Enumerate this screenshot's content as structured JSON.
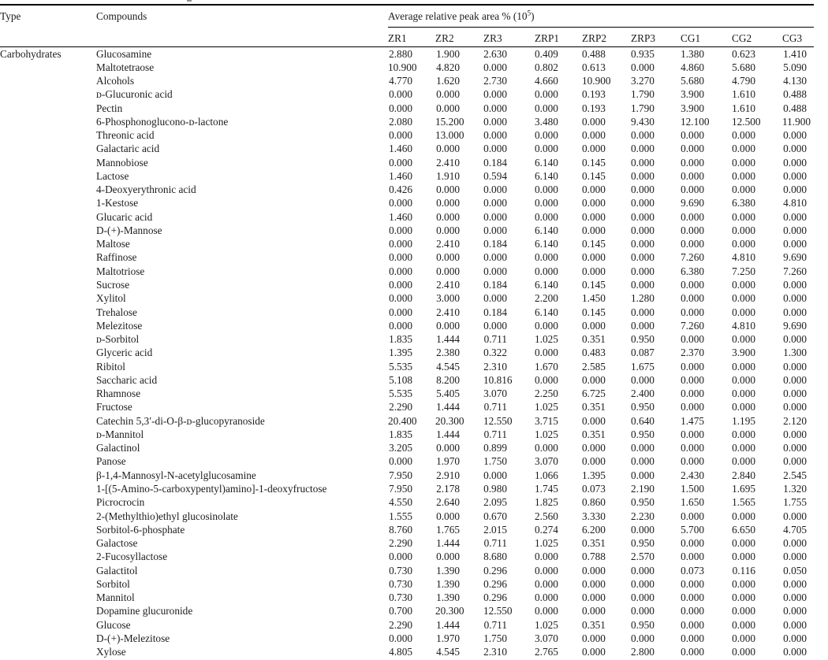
{
  "table": {
    "headers": {
      "type": "Type",
      "compounds": "Compounds",
      "spanner_prefix": "Average relative peak area % (10",
      "spanner_sup": "5",
      "spanner_suffix": ")"
    },
    "sample_headers": [
      "ZR1",
      "ZR2",
      "ZR3",
      "ZRP1",
      "ZRP2",
      "ZRP3",
      "CG1",
      "CG2",
      "CG3"
    ],
    "type_label": "Carbohydrates",
    "rows": [
      {
        "compound": "Glucosamine",
        "values": [
          "2.880",
          "1.900",
          "2.630",
          "0.409",
          "0.488",
          "0.935",
          "1.380",
          "0.623",
          "1.410"
        ]
      },
      {
        "compound": "Maltotetraose",
        "values": [
          "10.900",
          "4.820",
          "0.000",
          "0.802",
          "0.613",
          "0.000",
          "4.860",
          "5.680",
          "5.090"
        ]
      },
      {
        "compound": "Alcohols",
        "values": [
          "4.770",
          "1.620",
          "2.730",
          "4.660",
          "10.900",
          "3.270",
          "5.680",
          "4.790",
          "4.130"
        ]
      },
      {
        "compound": "ᴅ-Glucuronic acid",
        "values": [
          "0.000",
          "0.000",
          "0.000",
          "0.000",
          "0.193",
          "1.790",
          "3.900",
          "1.610",
          "0.488"
        ]
      },
      {
        "compound": "Pectin",
        "values": [
          "0.000",
          "0.000",
          "0.000",
          "0.000",
          "0.193",
          "1.790",
          "3.900",
          "1.610",
          "0.488"
        ]
      },
      {
        "compound": "6-Phosphonoglucono-ᴅ-lactone",
        "values": [
          "2.080",
          "15.200",
          "0.000",
          "3.480",
          "0.000",
          "9.430",
          "12.100",
          "12.500",
          "11.900"
        ]
      },
      {
        "compound": "Threonic acid",
        "values": [
          "0.000",
          "13.000",
          "0.000",
          "0.000",
          "0.000",
          "0.000",
          "0.000",
          "0.000",
          "0.000"
        ]
      },
      {
        "compound": "Galactaric acid",
        "values": [
          "1.460",
          "0.000",
          "0.000",
          "0.000",
          "0.000",
          "0.000",
          "0.000",
          "0.000",
          "0.000"
        ]
      },
      {
        "compound": "Mannobiose",
        "values": [
          "0.000",
          "2.410",
          "0.184",
          "6.140",
          "0.145",
          "0.000",
          "0.000",
          "0.000",
          "0.000"
        ]
      },
      {
        "compound": "Lactose",
        "values": [
          "1.460",
          "1.910",
          "0.594",
          "6.140",
          "0.145",
          "0.000",
          "0.000",
          "0.000",
          "0.000"
        ]
      },
      {
        "compound": "4-Deoxyerythronic acid",
        "values": [
          "0.426",
          "0.000",
          "0.000",
          "0.000",
          "0.000",
          "0.000",
          "0.000",
          "0.000",
          "0.000"
        ]
      },
      {
        "compound": "1-Kestose",
        "values": [
          "0.000",
          "0.000",
          "0.000",
          "0.000",
          "0.000",
          "0.000",
          "9.690",
          "6.380",
          "4.810"
        ]
      },
      {
        "compound": "Glucaric acid",
        "values": [
          "1.460",
          "0.000",
          "0.000",
          "0.000",
          "0.000",
          "0.000",
          "0.000",
          "0.000",
          "0.000"
        ]
      },
      {
        "compound": "D-(+)-Mannose",
        "values": [
          "0.000",
          "0.000",
          "0.000",
          "6.140",
          "0.000",
          "0.000",
          "0.000",
          "0.000",
          "0.000"
        ]
      },
      {
        "compound": "Maltose",
        "values": [
          "0.000",
          "2.410",
          "0.184",
          "6.140",
          "0.145",
          "0.000",
          "0.000",
          "0.000",
          "0.000"
        ]
      },
      {
        "compound": "Raffinose",
        "values": [
          "0.000",
          "0.000",
          "0.000",
          "0.000",
          "0.000",
          "0.000",
          "7.260",
          "4.810",
          "9.690"
        ]
      },
      {
        "compound": "Maltotriose",
        "values": [
          "0.000",
          "0.000",
          "0.000",
          "0.000",
          "0.000",
          "0.000",
          "6.380",
          "7.250",
          "7.260"
        ]
      },
      {
        "compound": "Sucrose",
        "values": [
          "0.000",
          "2.410",
          "0.184",
          "6.140",
          "0.145",
          "0.000",
          "0.000",
          "0.000",
          "0.000"
        ]
      },
      {
        "compound": "Xylitol",
        "values": [
          "0.000",
          "3.000",
          "0.000",
          "2.200",
          "1.450",
          "1.280",
          "0.000",
          "0.000",
          "0.000"
        ]
      },
      {
        "compound": "Trehalose",
        "values": [
          "0.000",
          "2.410",
          "0.184",
          "6.140",
          "0.145",
          "0.000",
          "0.000",
          "0.000",
          "0.000"
        ]
      },
      {
        "compound": "Melezitose",
        "values": [
          "0.000",
          "0.000",
          "0.000",
          "0.000",
          "0.000",
          "0.000",
          "7.260",
          "4.810",
          "9.690"
        ]
      },
      {
        "compound": "ᴅ-Sorbitol",
        "values": [
          "1.835",
          "1.444",
          "0.711",
          "1.025",
          "0.351",
          "0.950",
          "0.000",
          "0.000",
          "0.000"
        ]
      },
      {
        "compound": "Glyceric acid",
        "values": [
          "1.395",
          "2.380",
          "0.322",
          "0.000",
          "0.483",
          "0.087",
          "2.370",
          "3.900",
          "1.300"
        ]
      },
      {
        "compound": "Ribitol",
        "values": [
          "5.535",
          "4.545",
          "2.310",
          "1.670",
          "2.585",
          "1.675",
          "0.000",
          "0.000",
          "0.000"
        ]
      },
      {
        "compound": "Saccharic acid",
        "values": [
          "5.108",
          "8.200",
          "10.816",
          "0.000",
          "0.000",
          "0.000",
          "0.000",
          "0.000",
          "0.000"
        ]
      },
      {
        "compound": "Rhamnose",
        "values": [
          "5.535",
          "5.405",
          "3.070",
          "2.250",
          "6.725",
          "2.400",
          "0.000",
          "0.000",
          "0.000"
        ]
      },
      {
        "compound": "Fructose",
        "values": [
          "2.290",
          "1.444",
          "0.711",
          "1.025",
          "0.351",
          "0.950",
          "0.000",
          "0.000",
          "0.000"
        ]
      },
      {
        "compound": "Catechin 5,3′-di-O-β-ᴅ-glucopyranoside",
        "values": [
          "20.400",
          "20.300",
          "12.550",
          "3.715",
          "0.000",
          "0.640",
          "1.475",
          "1.195",
          "2.120"
        ]
      },
      {
        "compound": "ᴅ-Mannitol",
        "values": [
          "1.835",
          "1.444",
          "0.711",
          "1.025",
          "0.351",
          "0.950",
          "0.000",
          "0.000",
          "0.000"
        ]
      },
      {
        "compound": "Galactinol",
        "values": [
          "3.205",
          "0.000",
          "0.899",
          "0.000",
          "0.000",
          "0.000",
          "0.000",
          "0.000",
          "0.000"
        ]
      },
      {
        "compound": "Panose",
        "values": [
          "0.000",
          "1.970",
          "1.750",
          "3.070",
          "0.000",
          "0.000",
          "0.000",
          "0.000",
          "0.000"
        ]
      },
      {
        "compound": "β-1,4-Mannosyl-N-acetylglucosamine",
        "values": [
          "7.950",
          "2.910",
          "0.000",
          "1.066",
          "1.395",
          "0.000",
          "2.430",
          "2.840",
          "2.545"
        ]
      },
      {
        "compound": "1-[(5-Amino-5-carboxypentyl)amino]-1-deoxyfructose",
        "values": [
          "7.950",
          "2.178",
          "0.980",
          "1.745",
          "0.073",
          "2.190",
          "1.500",
          "1.695",
          "1.320"
        ]
      },
      {
        "compound": "Picrocrocin",
        "values": [
          "4.550",
          "2.640",
          "2.095",
          "1.825",
          "0.860",
          "0.950",
          "1.650",
          "1.565",
          "1.755"
        ]
      },
      {
        "compound": "2-(Methylthio)ethyl glucosinolate",
        "values": [
          "1.555",
          "0.000",
          "0.670",
          "2.560",
          "3.330",
          "2.230",
          "0.000",
          "0.000",
          "0.000"
        ]
      },
      {
        "compound": "Sorbitol-6-phosphate",
        "values": [
          "8.760",
          "1.765",
          "2.015",
          "0.274",
          "6.200",
          "0.000",
          "5.700",
          "6.650",
          "4.705"
        ]
      },
      {
        "compound": "Galactose",
        "values": [
          "2.290",
          "1.444",
          "0.711",
          "1.025",
          "0.351",
          "0.950",
          "0.000",
          "0.000",
          "0.000"
        ]
      },
      {
        "compound": "2-Fucosyllactose",
        "values": [
          "0.000",
          "0.000",
          "8.680",
          "0.000",
          "0.788",
          "2.570",
          "0.000",
          "0.000",
          "0.000"
        ]
      },
      {
        "compound": "Galactitol",
        "values": [
          "0.730",
          "1.390",
          "0.296",
          "0.000",
          "0.000",
          "0.000",
          "0.073",
          "0.116",
          "0.050"
        ]
      },
      {
        "compound": "Sorbitol",
        "values": [
          "0.730",
          "1.390",
          "0.296",
          "0.000",
          "0.000",
          "0.000",
          "0.000",
          "0.000",
          "0.000"
        ]
      },
      {
        "compound": "Mannitol",
        "values": [
          "0.730",
          "1.390",
          "0.296",
          "0.000",
          "0.000",
          "0.000",
          "0.000",
          "0.000",
          "0.000"
        ]
      },
      {
        "compound": "Dopamine glucuronide",
        "values": [
          "0.700",
          "20.300",
          "12.550",
          "0.000",
          "0.000",
          "0.000",
          "0.000",
          "0.000",
          "0.000"
        ]
      },
      {
        "compound": "Glucose",
        "values": [
          "2.290",
          "1.444",
          "0.711",
          "1.025",
          "0.351",
          "0.950",
          "0.000",
          "0.000",
          "0.000"
        ]
      },
      {
        "compound": "D-(+)-Melezitose",
        "values": [
          "0.000",
          "1.970",
          "1.750",
          "3.070",
          "0.000",
          "0.000",
          "0.000",
          "0.000",
          "0.000"
        ]
      },
      {
        "compound": "Xylose",
        "values": [
          "4.805",
          "4.545",
          "2.310",
          "2.765",
          "0.000",
          "2.800",
          "0.000",
          "0.000",
          "0.000"
        ]
      }
    ]
  }
}
